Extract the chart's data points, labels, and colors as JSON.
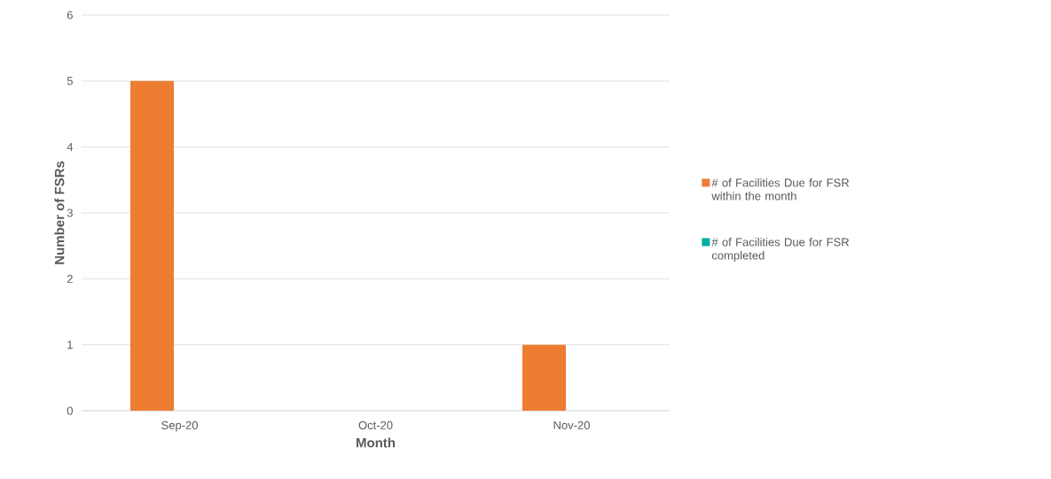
{
  "chart_data": {
    "type": "bar",
    "xlabel": "Month",
    "ylabel": "Number of FSRs",
    "categories": [
      "Sep-20",
      "Oct-20",
      "Nov-20"
    ],
    "series": [
      {
        "name": "# of Facilities Due for FSR within the month",
        "color": "#ed7d31",
        "values": [
          5,
          0,
          1
        ]
      },
      {
        "name": "# of Facilities Due for FSR completed",
        "color": "#00b0a0",
        "values": [
          0,
          0,
          0
        ]
      }
    ],
    "ylim": [
      0,
      6
    ],
    "yticks": [
      0,
      1,
      2,
      3,
      4,
      5,
      6
    ],
    "grid": "y",
    "legend": "right"
  }
}
